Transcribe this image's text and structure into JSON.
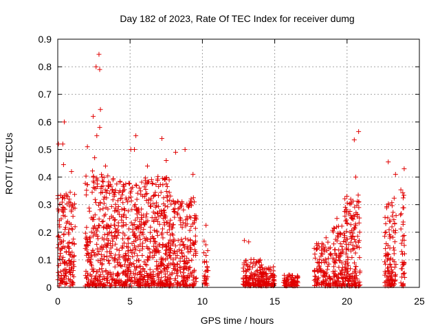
{
  "chart_data": {
    "type": "scatter",
    "title": "Day 182 of 2023, Rate Of TEC Index for receiver dumg",
    "xlabel": "GPS time / hours",
    "ylabel": "ROTI / TECUs",
    "xlim": [
      0,
      25
    ],
    "ylim": [
      0,
      0.9
    ],
    "x_ticks": [
      "0",
      "5",
      "10",
      "15",
      "20",
      "25"
    ],
    "y_ticks": [
      "0",
      "0.1",
      "0.2",
      "0.3",
      "0.4",
      "0.5",
      "0.6",
      "0.7",
      "0.8",
      "0.9"
    ],
    "x_tick_values": [
      0,
      5,
      10,
      15,
      20,
      25
    ],
    "y_tick_values": [
      0,
      0.1,
      0.2,
      0.3,
      0.4,
      0.5,
      0.6,
      0.7,
      0.8,
      0.9
    ],
    "grid": true,
    "marker": "plus",
    "marker_color": "#e00000",
    "outliers": [
      {
        "x": 2.85,
        "y": 0.845
      },
      {
        "x": 2.65,
        "y": 0.8
      },
      {
        "x": 2.9,
        "y": 0.79
      },
      {
        "x": 2.95,
        "y": 0.645
      },
      {
        "x": 2.45,
        "y": 0.62
      },
      {
        "x": 2.9,
        "y": 0.58
      },
      {
        "x": 0.45,
        "y": 0.6
      },
      {
        "x": 0.05,
        "y": 0.52
      },
      {
        "x": 0.35,
        "y": 0.52
      },
      {
        "x": 2.05,
        "y": 0.51
      },
      {
        "x": 2.7,
        "y": 0.55
      },
      {
        "x": 5.05,
        "y": 0.5
      },
      {
        "x": 5.4,
        "y": 0.55
      },
      {
        "x": 5.3,
        "y": 0.5
      },
      {
        "x": 7.2,
        "y": 0.54
      },
      {
        "x": 8.15,
        "y": 0.49
      },
      {
        "x": 8.8,
        "y": 0.5
      },
      {
        "x": 20.8,
        "y": 0.565
      },
      {
        "x": 20.5,
        "y": 0.535
      },
      {
        "x": 22.85,
        "y": 0.455
      },
      {
        "x": 23.95,
        "y": 0.43
      },
      {
        "x": 0.4,
        "y": 0.445
      },
      {
        "x": 0.95,
        "y": 0.42
      },
      {
        "x": 2.55,
        "y": 0.47
      },
      {
        "x": 3.3,
        "y": 0.44
      },
      {
        "x": 6.2,
        "y": 0.44
      },
      {
        "x": 7.5,
        "y": 0.46
      },
      {
        "x": 9.35,
        "y": 0.41
      },
      {
        "x": 10.25,
        "y": 0.225
      },
      {
        "x": 12.9,
        "y": 0.17
      },
      {
        "x": 13.2,
        "y": 0.165
      },
      {
        "x": 20.6,
        "y": 0.4
      },
      {
        "x": 23.35,
        "y": 0.41
      },
      {
        "x": 19.3,
        "y": 0.25
      },
      {
        "x": 18.55,
        "y": 0.18
      }
    ],
    "clusters": [
      {
        "x_range": [
          0.0,
          1.2
        ],
        "y_max": 0.34,
        "density": 160
      },
      {
        "x_range": [
          1.9,
          3.9
        ],
        "y_max": 0.42,
        "density": 280
      },
      {
        "x_range": [
          3.9,
          6.0
        ],
        "y_max": 0.38,
        "density": 320
      },
      {
        "x_range": [
          6.0,
          7.8
        ],
        "y_max": 0.4,
        "density": 300
      },
      {
        "x_range": [
          7.8,
          9.6
        ],
        "y_max": 0.32,
        "density": 220
      },
      {
        "x_range": [
          10.1,
          10.4
        ],
        "y_max": 0.17,
        "density": 30
      },
      {
        "x_range": [
          12.8,
          14.2
        ],
        "y_max": 0.1,
        "density": 140
      },
      {
        "x_range": [
          14.2,
          15.0
        ],
        "y_max": 0.07,
        "density": 70
      },
      {
        "x_range": [
          15.6,
          16.6
        ],
        "y_max": 0.04,
        "density": 70
      },
      {
        "x_range": [
          17.7,
          18.9
        ],
        "y_max": 0.16,
        "density": 110
      },
      {
        "x_range": [
          19.0,
          19.8
        ],
        "y_max": 0.22,
        "density": 100
      },
      {
        "x_range": [
          19.8,
          20.9
        ],
        "y_max": 0.33,
        "density": 160
      },
      {
        "x_range": [
          22.6,
          23.4
        ],
        "y_max": 0.32,
        "density": 110
      },
      {
        "x_range": [
          23.7,
          24.0
        ],
        "y_max": 0.35,
        "density": 40
      }
    ]
  }
}
